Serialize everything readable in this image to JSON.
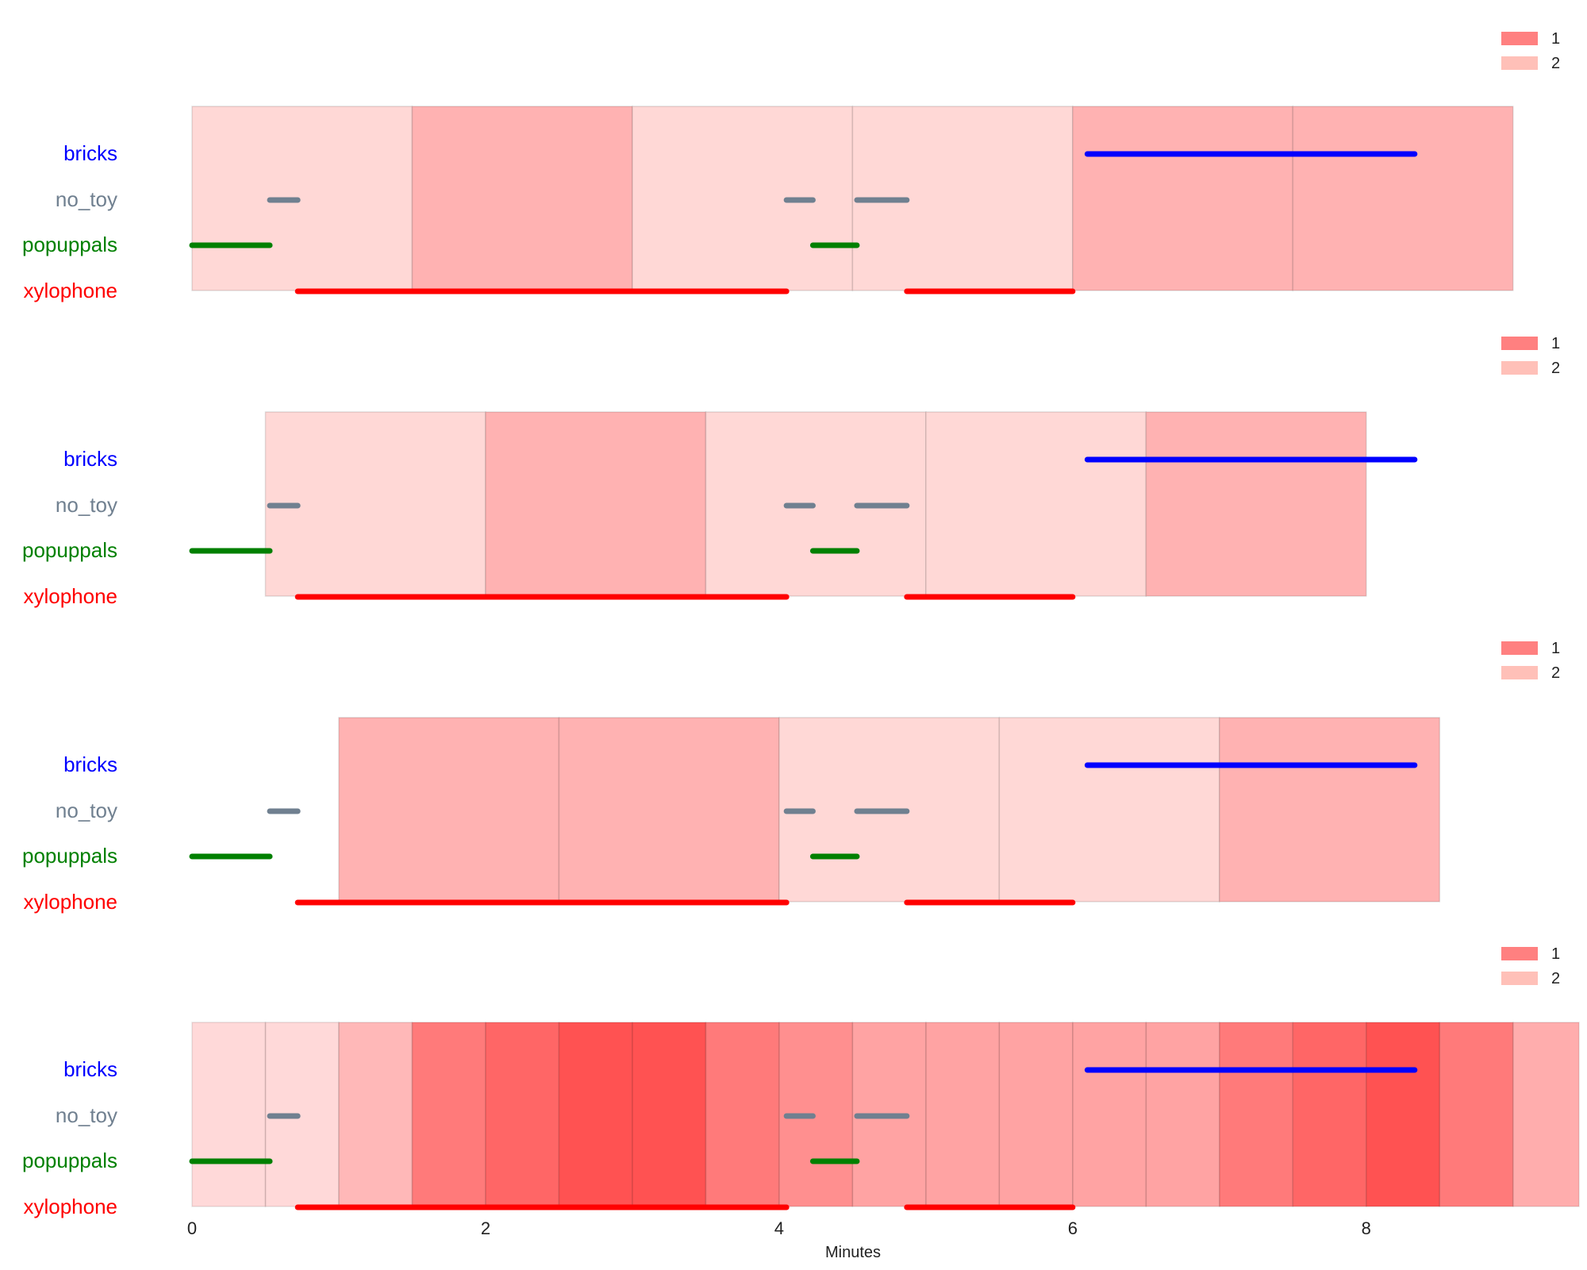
{
  "chart_data": {
    "type": "timeline",
    "xlabel": "Minutes",
    "xlim": [
      0,
      9.45
    ],
    "xticks": [
      0,
      2,
      4,
      6,
      8
    ],
    "legend": {
      "placement": "top-right",
      "entries": [
        {
          "label": "1",
          "color": "#ff8080"
        },
        {
          "label": "2",
          "color": "#ffc0b8"
        }
      ]
    },
    "categories": [
      "bricks",
      "no_toy",
      "popuppals",
      "xylophone"
    ],
    "category_colors": {
      "bricks": "#0000ff",
      "no_toy": "#708090",
      "popuppals": "#008000",
      "xylophone": "#ff0000"
    },
    "segments": [
      {
        "category": "popuppals",
        "start": 0.0,
        "end": 0.53
      },
      {
        "category": "no_toy",
        "start": 0.53,
        "end": 0.72
      },
      {
        "category": "xylophone",
        "start": 0.72,
        "end": 4.05
      },
      {
        "category": "no_toy",
        "start": 4.05,
        "end": 4.23
      },
      {
        "category": "popuppals",
        "start": 4.23,
        "end": 4.53
      },
      {
        "category": "no_toy",
        "start": 4.53,
        "end": 4.87
      },
      {
        "category": "xylophone",
        "start": 4.87,
        "end": 6.0
      },
      {
        "category": "bricks",
        "start": 6.1,
        "end": 8.33
      }
    ],
    "panels": [
      {
        "windows": [
          {
            "start": 0.0,
            "end": 1.5,
            "level": 2
          },
          {
            "start": 1.5,
            "end": 3.0,
            "level": 1
          },
          {
            "start": 3.0,
            "end": 4.5,
            "level": 2
          },
          {
            "start": 4.5,
            "end": 6.0,
            "level": 2
          },
          {
            "start": 6.0,
            "end": 7.5,
            "level": 1
          },
          {
            "start": 7.5,
            "end": 9.0,
            "level": 1
          }
        ]
      },
      {
        "windows": [
          {
            "start": 0.5,
            "end": 2.0,
            "level": 2
          },
          {
            "start": 2.0,
            "end": 3.5,
            "level": 1
          },
          {
            "start": 3.5,
            "end": 5.0,
            "level": 2
          },
          {
            "start": 5.0,
            "end": 6.5,
            "level": 2
          },
          {
            "start": 6.5,
            "end": 8.0,
            "level": 1
          }
        ]
      },
      {
        "windows": [
          {
            "start": 1.0,
            "end": 2.5,
            "level": 1
          },
          {
            "start": 2.5,
            "end": 4.0,
            "level": 1
          },
          {
            "start": 4.0,
            "end": 5.5,
            "level": 2
          },
          {
            "start": 5.5,
            "end": 7.0,
            "level": 2
          },
          {
            "start": 7.0,
            "end": 8.5,
            "level": 1
          }
        ]
      },
      {
        "heat": [
          {
            "start": 0.0,
            "end": 0.5,
            "intensity": 0.15
          },
          {
            "start": 0.5,
            "end": 1.0,
            "intensity": 0.15
          },
          {
            "start": 1.0,
            "end": 1.5,
            "intensity": 0.28
          },
          {
            "start": 1.5,
            "end": 2.0,
            "intensity": 0.52
          },
          {
            "start": 2.0,
            "end": 2.5,
            "intensity": 0.6
          },
          {
            "start": 2.5,
            "end": 3.0,
            "intensity": 0.68
          },
          {
            "start": 3.0,
            "end": 3.5,
            "intensity": 0.68
          },
          {
            "start": 3.5,
            "end": 4.0,
            "intensity": 0.52
          },
          {
            "start": 4.0,
            "end": 4.5,
            "intensity": 0.44
          },
          {
            "start": 4.5,
            "end": 5.0,
            "intensity": 0.36
          },
          {
            "start": 5.0,
            "end": 5.5,
            "intensity": 0.36
          },
          {
            "start": 5.5,
            "end": 6.0,
            "intensity": 0.36
          },
          {
            "start": 6.0,
            "end": 6.5,
            "intensity": 0.36
          },
          {
            "start": 6.5,
            "end": 7.0,
            "intensity": 0.36
          },
          {
            "start": 7.0,
            "end": 7.5,
            "intensity": 0.52
          },
          {
            "start": 7.5,
            "end": 8.0,
            "intensity": 0.6
          },
          {
            "start": 8.0,
            "end": 8.5,
            "intensity": 0.68
          },
          {
            "start": 8.5,
            "end": 9.0,
            "intensity": 0.52
          },
          {
            "start": 9.0,
            "end": 9.45,
            "intensity": 0.32
          }
        ]
      }
    ]
  }
}
